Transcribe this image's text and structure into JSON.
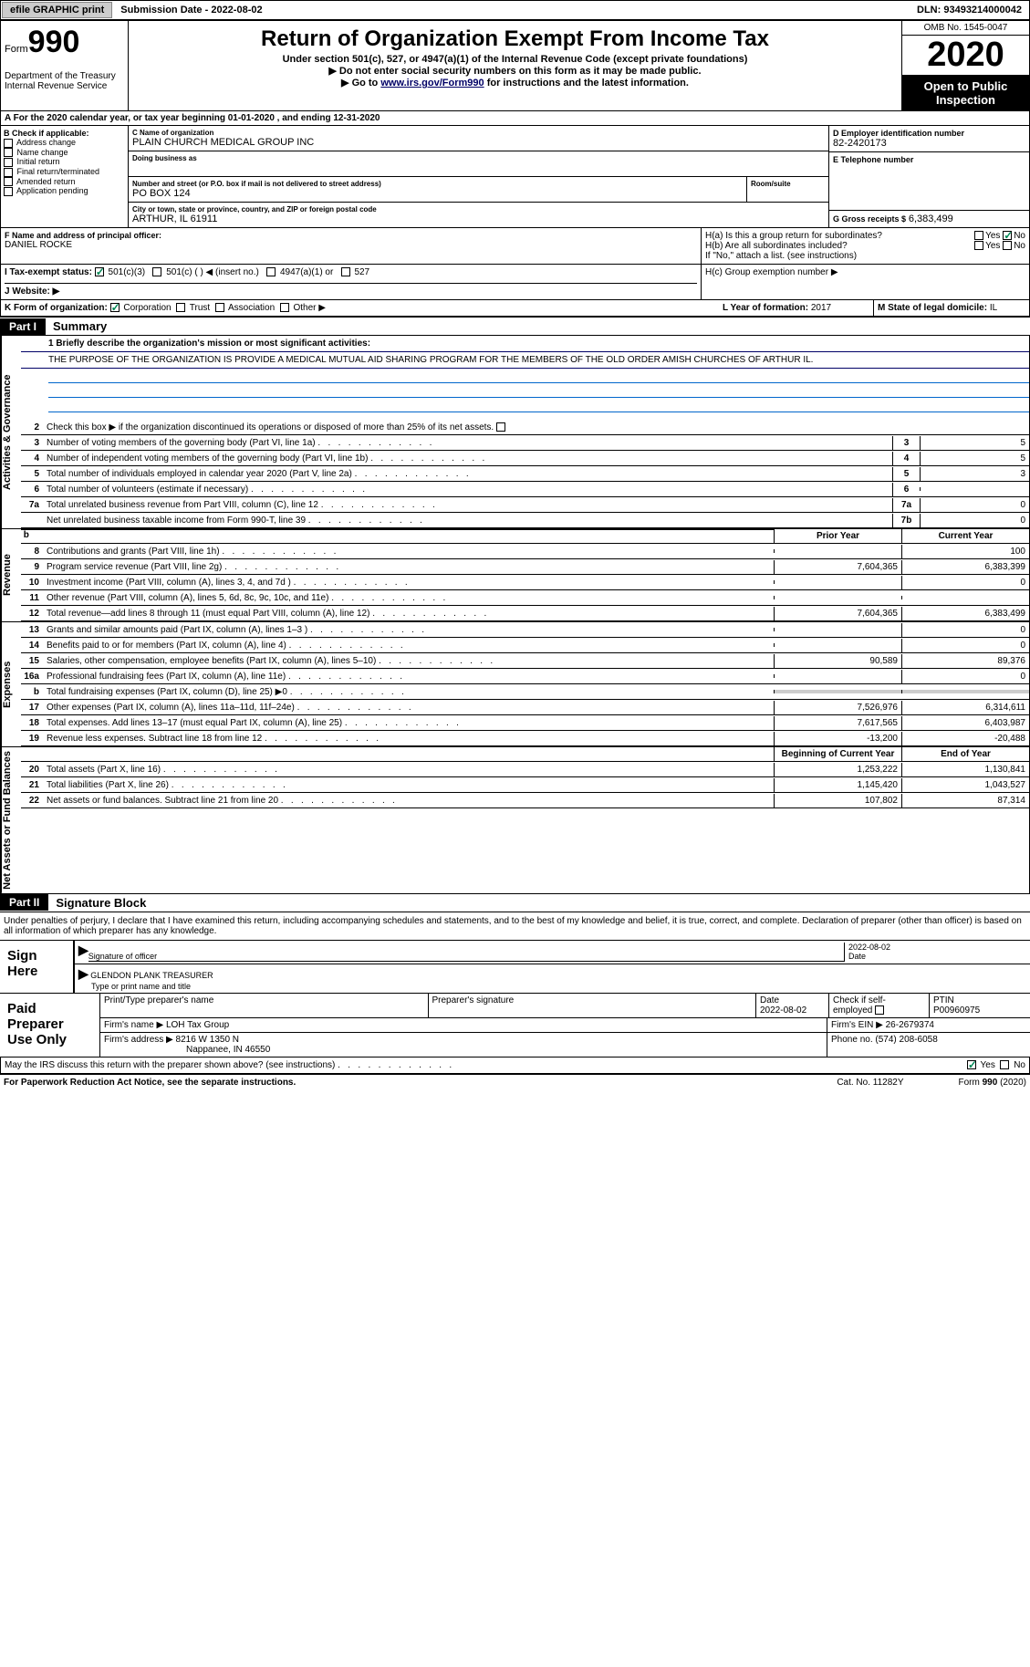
{
  "meta": {
    "omb": "OMB No. 1545-0047",
    "dln": "DLN: 93493214000042",
    "form_word": "Form",
    "form_num": "990",
    "year": "2020",
    "public1": "Open to Public",
    "public2": "Inspection",
    "dept1": "Department of the Treasury",
    "dept2": "Internal Revenue Service",
    "colors": {
      "link": "#0000aa",
      "grey_bg": "#cccccc",
      "check": "#008855"
    },
    "fontsize_base": 10,
    "fontsize_title": 24,
    "fontsize_year": 38,
    "fontsize_990": 34
  },
  "topbar": {
    "efile": "efile GRAPHIC print",
    "sub_date_label": "Submission Date - ",
    "sub_date": "2022-08-02"
  },
  "header": {
    "title": "Return of Organization Exempt From Income Tax",
    "subtitle": "Under section 501(c), 527, or 4947(a)(1) of the Internal Revenue Code (except private foundations)",
    "note1": "▶ Do not enter social security numbers on this form as it may be made public.",
    "note2_pre": "▶ Go to ",
    "note2_link": "www.irs.gov/Form990",
    "note2_post": " for instructions and the latest information."
  },
  "periodA": "For the 2020 calendar year, or tax year beginning 01-01-2020   , and ending 12-31-2020",
  "boxB": {
    "label": "B Check if applicable:",
    "items": [
      "Address change",
      "Name change",
      "Initial return",
      "Final return/terminated",
      "Amended return",
      "Application pending"
    ]
  },
  "boxC": {
    "name_label": "C Name of organization",
    "name": "PLAIN CHURCH MEDICAL GROUP INC",
    "dba_label": "Doing business as",
    "addr_label": "Number and street (or P.O. box if mail is not delivered to street address)",
    "room_label": "Room/suite",
    "addr": "PO BOX 124",
    "city_label": "City or town, state or province, country, and ZIP or foreign postal code",
    "city": "ARTHUR, IL  61911"
  },
  "boxD": {
    "label": "D Employer identification number",
    "val": "82-2420173"
  },
  "boxE": {
    "label": "E Telephone number",
    "val": ""
  },
  "boxG": {
    "label": "G Gross receipts $",
    "val": "6,383,499"
  },
  "boxF": {
    "label": "F  Name and address of principal officer:",
    "val": "DANIEL ROCKE"
  },
  "boxH": {
    "a_label": "H(a)  Is this a group return for subordinates?",
    "a_yes": "Yes",
    "a_no": "No",
    "b_label": "H(b)  Are all subordinates included?",
    "b_note": "If \"No,\" attach a list. (see instructions)",
    "c_label": "H(c)  Group exemption number ▶"
  },
  "boxI": {
    "label": "I   Tax-exempt status:",
    "opts": [
      "501(c)(3)",
      "501(c) (  ) ◀ (insert no.)",
      "4947(a)(1) or",
      "527"
    ]
  },
  "boxJ": {
    "label": "J   Website: ▶"
  },
  "boxK": {
    "label": "K Form of organization:",
    "opts": [
      "Corporation",
      "Trust",
      "Association",
      "Other ▶"
    ]
  },
  "boxL": {
    "label": "L Year of formation:",
    "val": "2017"
  },
  "boxM": {
    "label": "M State of legal domicile:",
    "val": "IL"
  },
  "part1": {
    "num": "Part I",
    "title": "Summary"
  },
  "summary": {
    "mission_label": "1   Briefly describe the organization's mission or most significant activities:",
    "mission": "THE PURPOSE OF THE ORGANIZATION IS PROVIDE A MEDICAL MUTUAL AID SHARING PROGRAM FOR THE MEMBERS OF THE OLD ORDER AMISH CHURCHES OF ARTHUR IL.",
    "line2": "Check this box ▶      if the organization discontinued its operations or disposed of more than 25% of its net assets.",
    "vtab_gov": "Activities & Governance",
    "vtab_rev": "Revenue",
    "vtab_exp": "Expenses",
    "vtab_net": "Net Assets or Fund Balances",
    "rows_single": [
      {
        "n": "3",
        "d": "Number of voting members of the governing body (Part VI, line 1a)",
        "box": "3",
        "v": "5"
      },
      {
        "n": "4",
        "d": "Number of independent voting members of the governing body (Part VI, line 1b)",
        "box": "4",
        "v": "5"
      },
      {
        "n": "5",
        "d": "Total number of individuals employed in calendar year 2020 (Part V, line 2a)",
        "box": "5",
        "v": "3"
      },
      {
        "n": "6",
        "d": "Total number of volunteers (estimate if necessary)",
        "box": "6",
        "v": ""
      },
      {
        "n": "7a",
        "d": "Total unrelated business revenue from Part VIII, column (C), line 12",
        "box": "7a",
        "v": "0"
      },
      {
        "n": "",
        "d": "Net unrelated business taxable income from Form 990-T, line 39",
        "box": "7b",
        "v": "0"
      }
    ],
    "col_prior": "Prior Year",
    "col_curr": "Current Year",
    "rows_rev": [
      {
        "n": "8",
        "d": "Contributions and grants (Part VIII, line 1h)",
        "p": "",
        "c": "100"
      },
      {
        "n": "9",
        "d": "Program service revenue (Part VIII, line 2g)",
        "p": "7,604,365",
        "c": "6,383,399"
      },
      {
        "n": "10",
        "d": "Investment income (Part VIII, column (A), lines 3, 4, and 7d )",
        "p": "",
        "c": "0"
      },
      {
        "n": "11",
        "d": "Other revenue (Part VIII, column (A), lines 5, 6d, 8c, 9c, 10c, and 11e)",
        "p": "",
        "c": ""
      },
      {
        "n": "12",
        "d": "Total revenue—add lines 8 through 11 (must equal Part VIII, column (A), line 12)",
        "p": "7,604,365",
        "c": "6,383,499"
      }
    ],
    "rows_exp": [
      {
        "n": "13",
        "d": "Grants and similar amounts paid (Part IX, column (A), lines 1–3 )",
        "p": "",
        "c": "0"
      },
      {
        "n": "14",
        "d": "Benefits paid to or for members (Part IX, column (A), line 4)",
        "p": "",
        "c": "0"
      },
      {
        "n": "15",
        "d": "Salaries, other compensation, employee benefits (Part IX, column (A), lines 5–10)",
        "p": "90,589",
        "c": "89,376"
      },
      {
        "n": "16a",
        "d": "Professional fundraising fees (Part IX, column (A), line 11e)",
        "p": "",
        "c": "0"
      },
      {
        "n": "b",
        "d": "Total fundraising expenses (Part IX, column (D), line 25) ▶0",
        "p": "grey",
        "c": "grey"
      },
      {
        "n": "17",
        "d": "Other expenses (Part IX, column (A), lines 11a–11d, 11f–24e)",
        "p": "7,526,976",
        "c": "6,314,611"
      },
      {
        "n": "18",
        "d": "Total expenses. Add lines 13–17 (must equal Part IX, column (A), line 25)",
        "p": "7,617,565",
        "c": "6,403,987"
      },
      {
        "n": "19",
        "d": "Revenue less expenses. Subtract line 18 from line 12",
        "p": "-13,200",
        "c": "-20,488"
      }
    ],
    "col_beg": "Beginning of Current Year",
    "col_end": "End of Year",
    "rows_net": [
      {
        "n": "20",
        "d": "Total assets (Part X, line 16)",
        "p": "1,253,222",
        "c": "1,130,841"
      },
      {
        "n": "21",
        "d": "Total liabilities (Part X, line 26)",
        "p": "1,145,420",
        "c": "1,043,527"
      },
      {
        "n": "22",
        "d": "Net assets or fund balances. Subtract line 21 from line 20",
        "p": "107,802",
        "c": "87,314"
      }
    ]
  },
  "part2": {
    "num": "Part II",
    "title": "Signature Block"
  },
  "sig": {
    "intro": "Under penalties of perjury, I declare that I have examined this return, including accompanying schedules and statements, and to the best of my knowledge and belief, it is true, correct, and complete. Declaration of preparer (other than officer) is based on all information of which preparer has any knowledge.",
    "sign_here": "Sign Here",
    "officer_sig": "Signature of officer",
    "date_label": "Date",
    "date_val": "2022-08-02",
    "officer_name": "GLENDON PLANK  TREASURER",
    "officer_type": "Type or print name and title",
    "paid": "Paid Preparer Use Only",
    "prep_name_label": "Print/Type preparer's name",
    "prep_sig_label": "Preparer's signature",
    "prep_date_label": "Date",
    "prep_date": "2022-08-02",
    "self_emp": "Check       if self-employed",
    "ptin_label": "PTIN",
    "ptin": "P00960975",
    "firm_name_label": "Firm's name    ▶",
    "firm_name": "LOH Tax Group",
    "firm_ein_label": "Firm's EIN ▶",
    "firm_ein": "26-2679374",
    "firm_addr_label": "Firm's address ▶",
    "firm_addr1": "8216 W 1350 N",
    "firm_addr2": "Nappanee, IN  46550",
    "firm_phone_label": "Phone no.",
    "firm_phone": "(574) 208-6058",
    "discuss": "May the IRS discuss this return with the preparer shown above? (see instructions)",
    "yes": "Yes",
    "no": "No"
  },
  "footer": {
    "pra": "For Paperwork Reduction Act Notice, see the separate instructions.",
    "cat": "Cat. No. 11282Y",
    "form": "Form 990 (2020)"
  }
}
